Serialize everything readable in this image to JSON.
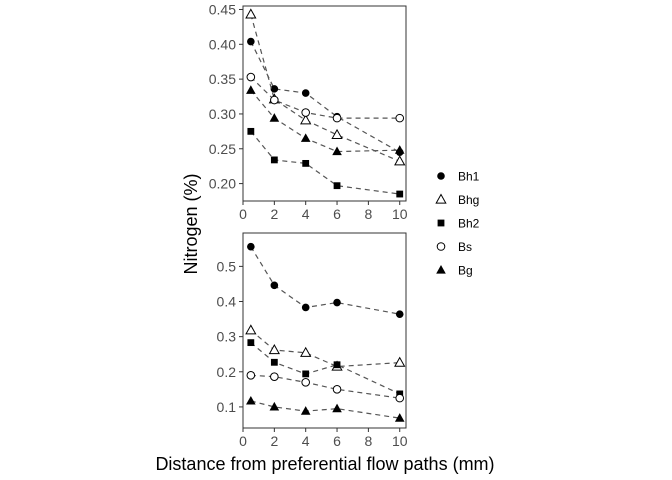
{
  "xlabel": "Distance from preferential flow paths (mm)",
  "ylabel": "Nitrogen (%)",
  "legend": {
    "placement": "right",
    "items": [
      {
        "label": "Bh1",
        "shape": "filled-circle"
      },
      {
        "label": "Bhg",
        "shape": "open-triangle"
      },
      {
        "label": "Bh2",
        "shape": "filled-square"
      },
      {
        "label": "Bs",
        "shape": "open-circle"
      },
      {
        "label": "Bg",
        "shape": "filled-triangle"
      }
    ]
  },
  "chart_data": [
    {
      "type": "scatter",
      "panel": "top",
      "title": "",
      "x": [
        0.5,
        2,
        4,
        6,
        10
      ],
      "xlim": [
        0,
        10.4
      ],
      "ylim": [
        0.175,
        0.455
      ],
      "xticks": [
        "0",
        "2",
        "4",
        "6",
        "8",
        "10"
      ],
      "yticks": [
        "0.20",
        "0.25",
        "0.30",
        "0.35",
        "0.40",
        "0.45"
      ],
      "grid": false,
      "line_style": "dashed",
      "series": [
        {
          "name": "Bh1",
          "shape": "filled-circle",
          "values": [
            0.404,
            0.336,
            0.33,
            0.296,
            0.245
          ]
        },
        {
          "name": "Bhg",
          "shape": "open-triangle",
          "values": [
            0.443,
            0.321,
            0.291,
            0.27,
            0.232
          ]
        },
        {
          "name": "Bh2",
          "shape": "filled-square",
          "values": [
            0.275,
            0.234,
            0.229,
            0.197,
            0.185
          ]
        },
        {
          "name": "Bs",
          "shape": "open-circle",
          "values": [
            0.353,
            0.32,
            0.302,
            0.294,
            0.294
          ]
        },
        {
          "name": "Bg",
          "shape": "filled-triangle",
          "values": [
            0.334,
            0.294,
            0.265,
            0.246,
            0.248
          ]
        }
      ]
    },
    {
      "type": "scatter",
      "panel": "bottom",
      "title": "",
      "x": [
        0.5,
        2,
        4,
        6,
        10
      ],
      "xlim": [
        0,
        10.4
      ],
      "ylim": [
        0.04,
        0.595
      ],
      "xticks": [
        "0",
        "2",
        "4",
        "6",
        "8",
        "10"
      ],
      "yticks": [
        "0.1",
        "0.2",
        "0.3",
        "0.4",
        "0.5"
      ],
      "grid": false,
      "line_style": "dashed",
      "series": [
        {
          "name": "Bh1",
          "shape": "filled-circle",
          "values": [
            0.556,
            0.446,
            0.383,
            0.397,
            0.364
          ]
        },
        {
          "name": "Bhg",
          "shape": "open-triangle",
          "values": [
            0.318,
            0.262,
            0.254,
            0.215,
            0.226
          ]
        },
        {
          "name": "Bh2",
          "shape": "filled-square",
          "values": [
            0.283,
            0.227,
            0.194,
            0.22,
            0.137
          ]
        },
        {
          "name": "Bs",
          "shape": "open-circle",
          "values": [
            0.19,
            0.186,
            0.17,
            0.15,
            0.125
          ]
        },
        {
          "name": "Bg",
          "shape": "filled-triangle",
          "values": [
            0.117,
            0.1,
            0.088,
            0.095,
            0.068
          ]
        }
      ]
    }
  ]
}
